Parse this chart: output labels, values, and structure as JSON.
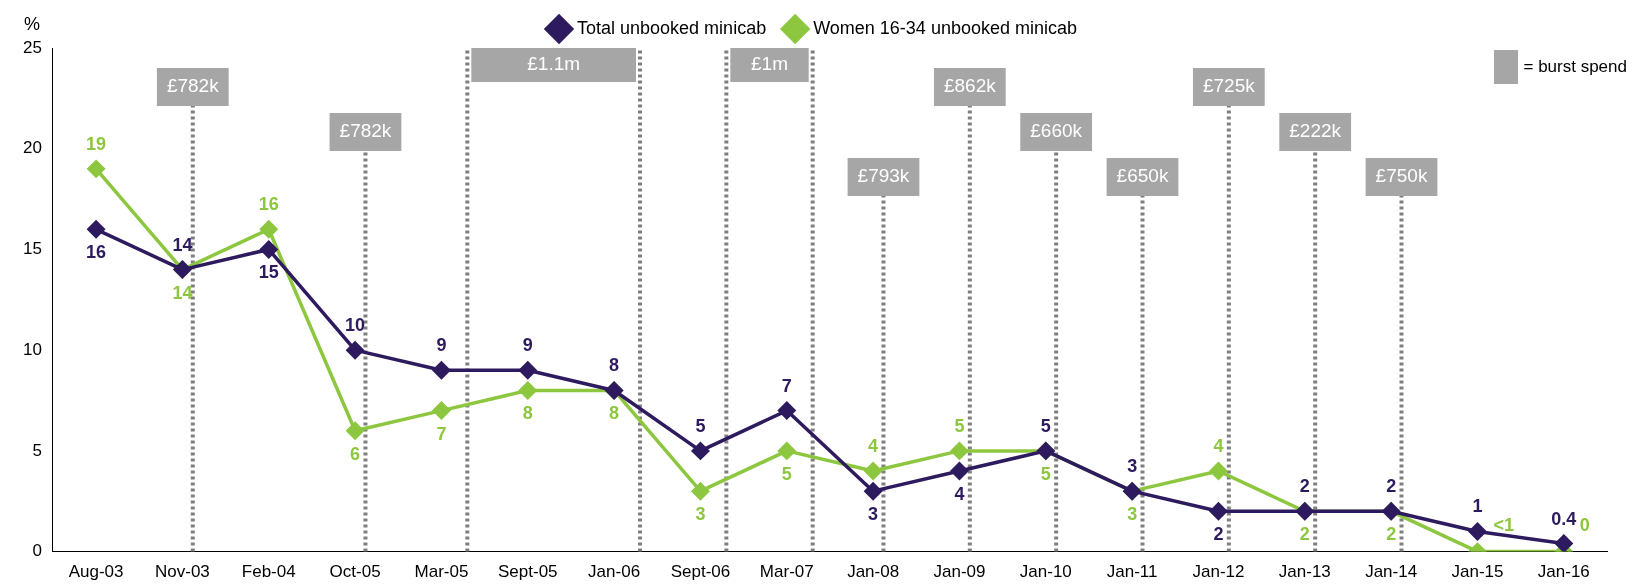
{
  "chart_data": {
    "type": "line",
    "ylabel": "%",
    "categories": [
      "Aug-03",
      "Nov-03",
      "Feb-04",
      "Oct-05",
      "Mar-05",
      "Sept-05",
      "Jan-06",
      "Sept-06",
      "Mar-07",
      "Jan-08",
      "Jan-09",
      "Jan-10",
      "Jan-11",
      "Jan-12",
      "Jan-13",
      "Jan-14",
      "Jan-15",
      "Jan-16"
    ],
    "series": [
      {
        "name": "Total unbooked minicab",
        "color": "#2e1a5e",
        "values": [
          16,
          14,
          15,
          10,
          9,
          9,
          8,
          5,
          7,
          3,
          4,
          5,
          3,
          2,
          2,
          2,
          1,
          0.4
        ],
        "value_labels": [
          "16",
          "14",
          "15",
          "10",
          "9",
          "9",
          "8",
          "5",
          "7",
          "3",
          "4",
          "5",
          "3",
          "2",
          "2",
          "2",
          "1",
          "0.4"
        ]
      },
      {
        "name": "Women 16-34 unbooked minicab",
        "color": "#8dc63f",
        "values": [
          19,
          14,
          16,
          6,
          7,
          8,
          8,
          3,
          5,
          4,
          5,
          5,
          3,
          4,
          2,
          2,
          0,
          0
        ],
        "value_labels": [
          "19",
          "14",
          "16",
          "6",
          "7",
          "8",
          "8",
          "3",
          "5",
          "4",
          "5",
          "5",
          "3",
          "4",
          "2",
          "2",
          "<1",
          "0"
        ]
      }
    ],
    "ylim": [
      0,
      25
    ],
    "yticks": [
      0,
      5,
      10,
      15,
      20,
      25
    ],
    "grid": false,
    "legend": "top",
    "marker": "diamond",
    "line_style": "solid",
    "ref_lines": [
      {
        "axis": "x",
        "value": "Nov-03",
        "label": "£782k",
        "color": "#7f7f7f",
        "line_style": "dotted"
      },
      {
        "axis": "x",
        "value": "Oct-05",
        "label": "£782k",
        "color": "#7f7f7f",
        "line_style": "dotted"
      },
      {
        "axis": "x",
        "value": "Jan-08",
        "label": "£793k",
        "color": "#7f7f7f",
        "line_style": "dotted"
      },
      {
        "axis": "x",
        "value": "Jan-09",
        "label": "£862k",
        "color": "#7f7f7f",
        "line_style": "dotted"
      },
      {
        "axis": "x",
        "value": "Jan-10",
        "label": "£660k",
        "color": "#7f7f7f",
        "line_style": "dotted"
      },
      {
        "axis": "x",
        "value": "Jan-11",
        "label": "£650k",
        "color": "#7f7f7f",
        "line_style": "dotted"
      },
      {
        "axis": "x",
        "value": "Jan-12",
        "label": "£725k",
        "color": "#7f7f7f",
        "line_style": "dotted"
      },
      {
        "axis": "x",
        "value": "Jan-13",
        "label": "£222k",
        "color": "#7f7f7f",
        "line_style": "dotted"
      },
      {
        "axis": "x",
        "value": "Jan-14",
        "label": "£750k",
        "color": "#7f7f7f",
        "line_style": "dotted"
      }
    ],
    "bands": [
      {
        "axis": "x",
        "from": "Mar-05",
        "to": "Jan-06",
        "label": "£1.1m",
        "color": "#a6a6a6"
      },
      {
        "axis": "x",
        "from": "Sept-06",
        "to": "Mar-07",
        "label": "£1m",
        "color": "#a6a6a6"
      }
    ],
    "annotations": [
      "= burst spend"
    ]
  }
}
